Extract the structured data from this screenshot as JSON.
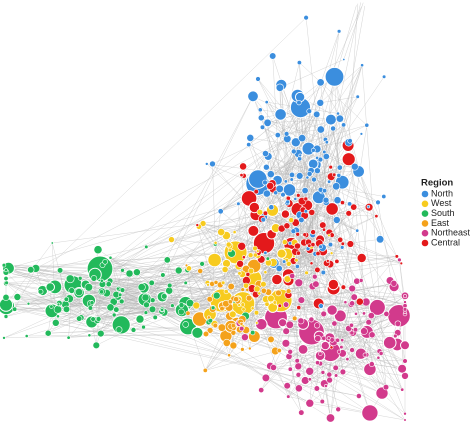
{
  "legend": {
    "title": "Region",
    "items": [
      {
        "label": "North",
        "color": "#3b8ede"
      },
      {
        "label": "West",
        "color": "#f7cb1f"
      },
      {
        "label": "South",
        "color": "#22b95b"
      },
      {
        "label": "East",
        "color": "#f4a21b"
      },
      {
        "label": "Northeast",
        "color": "#d23a8c"
      },
      {
        "label": "Central",
        "color": "#e3191b"
      }
    ]
  }
}
